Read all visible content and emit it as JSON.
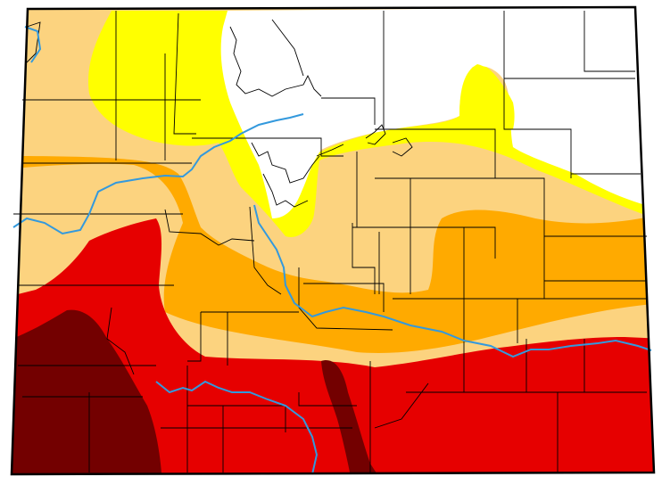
{
  "map": {
    "region": "Colorado",
    "legend_shown": false,
    "title": "",
    "colors": {
      "none": "#ffffff",
      "abnormally_dry": "#ffff00",
      "moderate": "#fcd37f",
      "severe": "#ffaa00",
      "extreme": "#e60000",
      "exceptional": "#730000",
      "rivers": "#3399dd",
      "borders": "#000000"
    },
    "categories": [
      "none",
      "abnormally_dry",
      "moderate",
      "severe",
      "extreme",
      "exceptional"
    ]
  }
}
